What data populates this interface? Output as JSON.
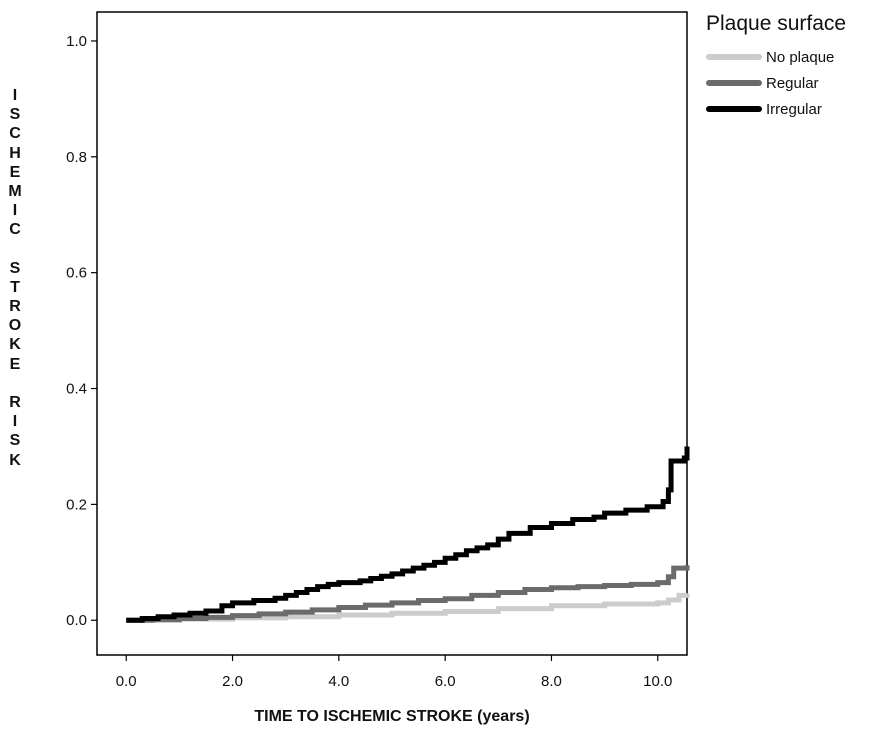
{
  "chart_data": {
    "type": "line",
    "title": "",
    "xlabel": "TIME TO ISCHEMIC STROKE (years)",
    "ylabel": "ISCHEMIC STROKE RISK",
    "xlim": [
      -0.55,
      10.55
    ],
    "ylim": [
      -0.06,
      1.05
    ],
    "x_ticks": [
      "0.0",
      "2.0",
      "4.0",
      "6.0",
      "8.0",
      "10.0"
    ],
    "y_ticks": [
      "0.0",
      "0.2",
      "0.4",
      "0.6",
      "0.8",
      "1.0"
    ],
    "legend": {
      "title": "Plaque surface",
      "position": "outside-top-right"
    },
    "grid": false,
    "series": [
      {
        "name": "No plaque",
        "color": "#cccccc",
        "step": true,
        "x": [
          0.0,
          1.0,
          2.0,
          3.0,
          4.0,
          5.0,
          6.0,
          7.0,
          8.0,
          9.0,
          10.0,
          10.2,
          10.4,
          10.55
        ],
        "y": [
          0.0,
          0.002,
          0.004,
          0.006,
          0.009,
          0.012,
          0.015,
          0.02,
          0.025,
          0.028,
          0.03,
          0.035,
          0.043,
          0.046
        ]
      },
      {
        "name": "Regular",
        "color": "#6b6b6b",
        "step": true,
        "x": [
          0.0,
          0.5,
          1.0,
          1.5,
          2.0,
          2.5,
          3.0,
          3.5,
          4.0,
          4.5,
          5.0,
          5.5,
          6.0,
          6.5,
          7.0,
          7.5,
          8.0,
          8.5,
          9.0,
          9.5,
          10.0,
          10.2,
          10.3,
          10.55
        ],
        "y": [
          0.0,
          0.001,
          0.003,
          0.005,
          0.008,
          0.011,
          0.014,
          0.018,
          0.022,
          0.026,
          0.03,
          0.034,
          0.037,
          0.043,
          0.048,
          0.053,
          0.056,
          0.058,
          0.06,
          0.062,
          0.065,
          0.075,
          0.09,
          0.095
        ]
      },
      {
        "name": "Irregular",
        "color": "#000000",
        "step": true,
        "x": [
          0.0,
          0.3,
          0.6,
          0.9,
          1.2,
          1.5,
          1.8,
          2.0,
          2.4,
          2.8,
          3.0,
          3.2,
          3.4,
          3.6,
          3.8,
          4.0,
          4.4,
          4.6,
          4.8,
          5.0,
          5.2,
          5.4,
          5.6,
          5.8,
          6.0,
          6.2,
          6.4,
          6.6,
          6.8,
          7.0,
          7.2,
          7.6,
          8.0,
          8.4,
          8.8,
          9.0,
          9.4,
          9.8,
          10.1,
          10.2,
          10.25,
          10.5,
          10.55
        ],
        "y": [
          0.0,
          0.003,
          0.006,
          0.009,
          0.012,
          0.016,
          0.025,
          0.03,
          0.034,
          0.038,
          0.043,
          0.048,
          0.053,
          0.058,
          0.062,
          0.065,
          0.068,
          0.072,
          0.076,
          0.08,
          0.085,
          0.09,
          0.095,
          0.1,
          0.107,
          0.113,
          0.12,
          0.125,
          0.13,
          0.14,
          0.15,
          0.16,
          0.167,
          0.174,
          0.178,
          0.185,
          0.19,
          0.196,
          0.205,
          0.225,
          0.275,
          0.28,
          0.3
        ]
      }
    ]
  }
}
